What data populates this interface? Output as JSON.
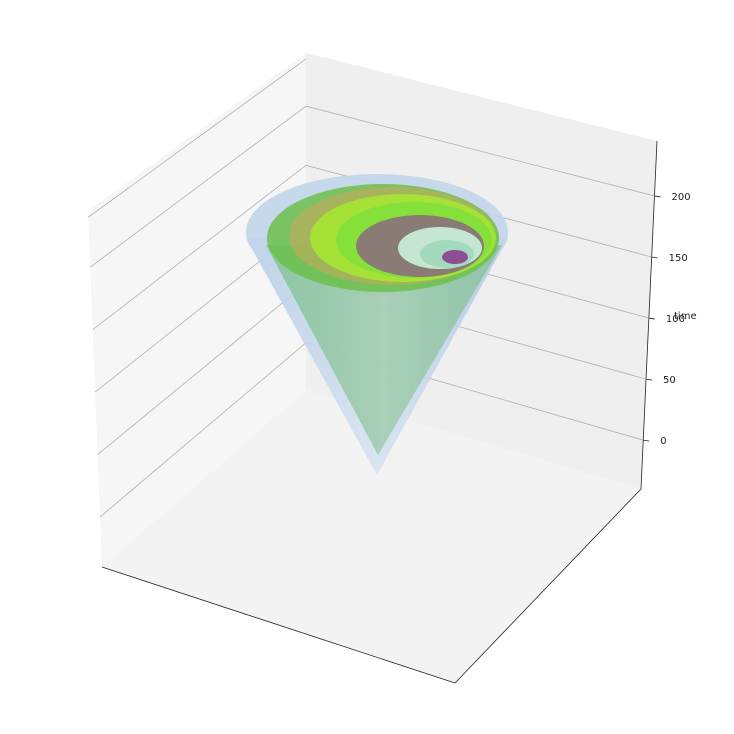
{
  "chart_data": {
    "type": "3d-surface",
    "title": "",
    "xlabel": "",
    "ylabel": "",
    "zlabel": "time",
    "z_ticks": [
      0,
      50,
      100,
      150,
      200
    ],
    "zlim": [
      -40,
      245
    ],
    "x_ticks_visible": false,
    "y_ticks_visible": false,
    "grid": true,
    "legend": "none",
    "pane_colors": {
      "floor": "#f3f3f3",
      "left_wall": "#f6f6f6",
      "back_wall": "#efefef"
    },
    "surfaces": [
      {
        "shape": "cone",
        "z_range": [
          -30,
          200
        ],
        "color": "#b9cfe8"
      },
      {
        "shape": "cone",
        "z_range": [
          -30,
          190
        ],
        "color": "#8fc7a4"
      },
      {
        "shape": "disc",
        "z": 190,
        "color": "#6bbf4a"
      },
      {
        "shape": "disc",
        "z": 185,
        "color": "#c6a95a"
      },
      {
        "shape": "disc",
        "z": 180,
        "color": "#a5e632"
      },
      {
        "shape": "disc",
        "z": 175,
        "color": "#7fe03a"
      },
      {
        "shape": "disc",
        "z": 170,
        "color": "#8c5a8a"
      },
      {
        "shape": "disc",
        "z": 168,
        "color": "#c9ecd9"
      },
      {
        "shape": "disc",
        "z": 165,
        "color": "#9fd7b9"
      },
      {
        "shape": "disc",
        "z": 162,
        "color": "#8b3f8e"
      }
    ]
  }
}
